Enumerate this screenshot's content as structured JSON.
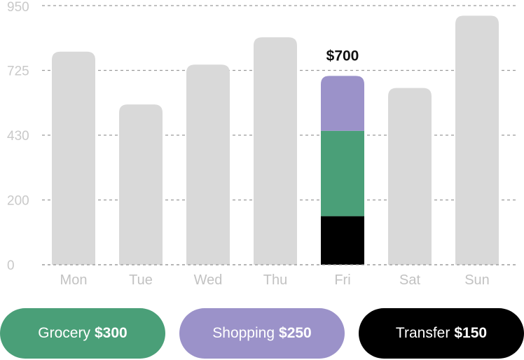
{
  "chart_data": {
    "type": "bar",
    "categories": [
      "Mon",
      "Tue",
      "Wed",
      "Thu",
      "Fri",
      "Sat",
      "Sun"
    ],
    "values": [
      790,
      570,
      745,
      840,
      700,
      645,
      915
    ],
    "highlight": {
      "category": "Fri",
      "label": "$700",
      "segments": [
        {
          "name": "Transfer",
          "value": 150,
          "color": "#000000"
        },
        {
          "name": "Grocery",
          "value": 300,
          "color": "#4a9f78"
        },
        {
          "name": "Shopping",
          "value": 250,
          "color": "#9b92c9"
        }
      ]
    },
    "y_ticks": [
      {
        "value": 0,
        "label": "0"
      },
      {
        "value": 200,
        "label": "200"
      },
      {
        "value": 430,
        "label": "430"
      },
      {
        "value": 725,
        "label": "725"
      },
      {
        "value": 950,
        "label": "950"
      }
    ],
    "ylim": [
      0,
      950
    ],
    "y_scale": "piecewise-linear between ticks",
    "grid": "horizontal dashed",
    "bar_color": "#d9d9d9",
    "title": "",
    "xlabel": "",
    "ylabel": ""
  },
  "legend": [
    {
      "label": "Grocery",
      "amount": "$300",
      "color": "#4a9f78"
    },
    {
      "label": "Shopping",
      "amount": "$250",
      "color": "#9b92c9"
    },
    {
      "label": "Transfer",
      "amount": "$150",
      "color": "#000000"
    }
  ]
}
